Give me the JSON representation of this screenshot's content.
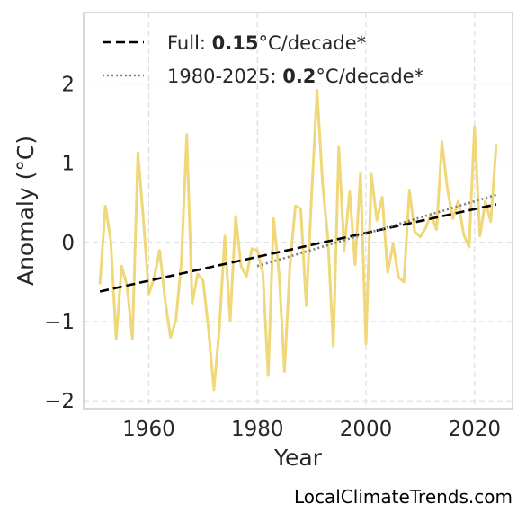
{
  "chart_data": {
    "type": "line",
    "xlabel": "Year",
    "ylabel": "Anomaly (°C)",
    "xlim": [
      1948,
      2027
    ],
    "ylim": [
      -2.1,
      2.9
    ],
    "xticks": [
      1960,
      1980,
      2000,
      2020
    ],
    "yticks": [
      -2,
      -1,
      0,
      1,
      2
    ],
    "ytick_labels": [
      "−2",
      "−1",
      "0",
      "1",
      "2"
    ],
    "grid": true,
    "legend_position": "top-left",
    "colors": {
      "series": "#f0d87a",
      "full_trend": "#000000",
      "recent_trend": "#808080",
      "axes": "#cccccc",
      "grid": "#dddddd"
    },
    "series": [
      {
        "x": [
          1951,
          1952,
          1953,
          1954,
          1955,
          1956,
          1957,
          1958,
          1959,
          1960,
          1961,
          1962,
          1963,
          1964,
          1965,
          1966,
          1967,
          1968,
          1969,
          1970,
          1971,
          1972,
          1973,
          1974,
          1975,
          1976,
          1977,
          1978,
          1979,
          1980,
          1981,
          1982,
          1983,
          1984,
          1985,
          1986,
          1987,
          1988,
          1989,
          1990,
          1991,
          1992,
          1993,
          1994,
          1995,
          1996,
          1997,
          1998,
          1999,
          2000,
          2001,
          2002,
          2003,
          2004,
          2005,
          2006,
          2007,
          2008,
          2009,
          2010,
          2011,
          2012,
          2013,
          2014,
          2015,
          2016,
          2017,
          2018,
          2019,
          2020,
          2021,
          2022,
          2023,
          2024
        ],
        "y": [
          -0.53,
          0.46,
          0.02,
          -1.22,
          -0.3,
          -0.55,
          -1.22,
          1.13,
          0.3,
          -0.65,
          -0.45,
          -0.1,
          -0.72,
          -1.2,
          -0.98,
          -0.26,
          1.36,
          -0.77,
          -0.4,
          -0.48,
          -1.1,
          -1.86,
          -1.1,
          0.08,
          -0.99,
          0.33,
          -0.3,
          -0.43,
          -0.08,
          -0.1,
          -0.38,
          -1.68,
          0.3,
          -0.4,
          -1.63,
          -0.3,
          0.46,
          0.42,
          -0.8,
          0.6,
          1.92,
          0.75,
          0.05,
          -1.31,
          1.21,
          -0.1,
          0.64,
          -0.28,
          0.88,
          -1.28,
          0.86,
          0.28,
          0.57,
          -0.38,
          -0.02,
          -0.44,
          -0.5,
          0.66,
          0.13,
          0.07,
          0.18,
          0.36,
          0.16,
          1.27,
          0.68,
          0.3,
          0.52,
          0.1,
          -0.06,
          1.46,
          0.08,
          0.52,
          0.26,
          1.24
        ]
      }
    ],
    "trend_lines": [
      {
        "label": "Full",
        "rate": "0.15",
        "x": [
          1951,
          2024
        ],
        "y": [
          -0.62,
          0.48
        ],
        "style": "dashed"
      },
      {
        "label": "1980-2025",
        "rate": "0.2",
        "x": [
          1980,
          2024
        ],
        "y": [
          -0.3,
          0.6
        ],
        "style": "dotted"
      }
    ],
    "legend": {
      "full_prefix": "Full: ",
      "full_value": "0.15",
      "full_suffix": "°C/decade*",
      "recent_prefix": "1980-2025: ",
      "recent_value": "0.2",
      "recent_suffix": "°C/decade*"
    }
  },
  "credit": "LocalClimateTrends.com"
}
